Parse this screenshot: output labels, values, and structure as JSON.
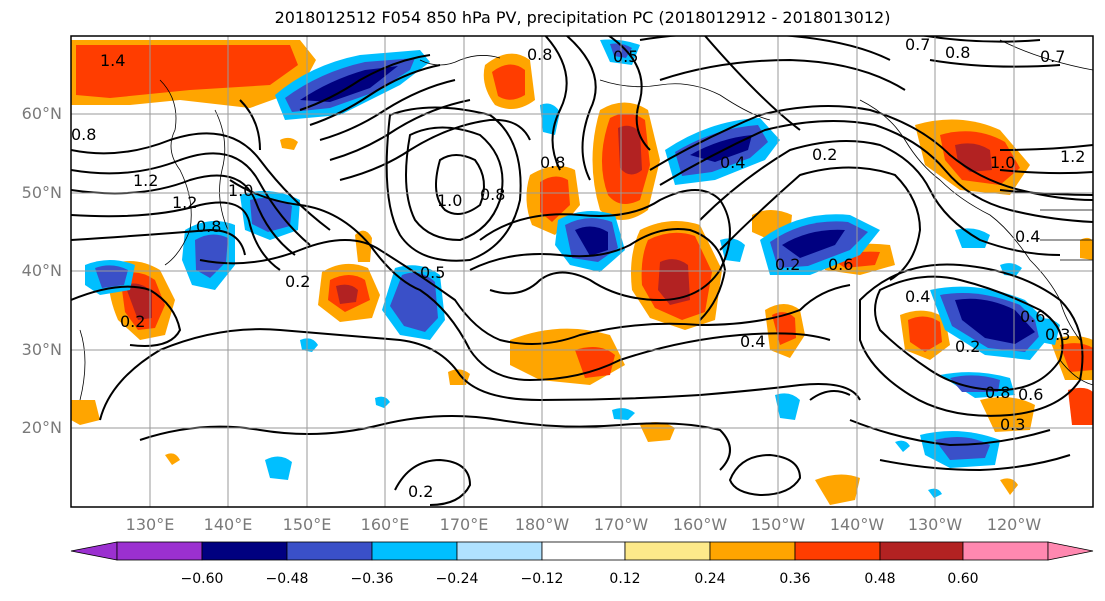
{
  "title": "2018012512 F054 850 hPa PV, precipitation PC (2018012912 - 2018013012)",
  "lat_labels": [
    "60°N",
    "50°N",
    "40°N",
    "30°N",
    "20°N"
  ],
  "lon_labels": [
    "130°E",
    "140°E",
    "150°E",
    "160°E",
    "170°E",
    "180°W",
    "170°W",
    "160°W",
    "150°W",
    "140°W",
    "130°W",
    "120°W"
  ],
  "colorbar": {
    "ticks": [
      "−0.60",
      "−0.48",
      "−0.36",
      "−0.24",
      "−0.12",
      "0.12",
      "0.24",
      "0.36",
      "0.48",
      "0.60"
    ],
    "colors": [
      "#9b30d0",
      "#000080",
      "#3a50c8",
      "#00bfff",
      "#b0e2ff",
      "#ffffff",
      "#fde98a",
      "#ffa500",
      "#ff3d00",
      "#b22222",
      "#ff88b0"
    ]
  },
  "contour_labels": [
    "1.4",
    "0.8",
    "0.5",
    "0.7",
    "0.8",
    "0.7",
    "0.8",
    "1.2",
    "1.2",
    "1.0",
    "0.8",
    "1.0",
    "0.8",
    "0.8",
    "0.2",
    "0.4",
    "1.0",
    "1.2",
    "0.4",
    "0.2",
    "0.5",
    "0.2",
    "0.4",
    "0.4",
    "0.2",
    "0.6",
    "0.3",
    "0.8",
    "0.6",
    "0.3",
    "0.2",
    "0.6",
    "0.2"
  ]
}
